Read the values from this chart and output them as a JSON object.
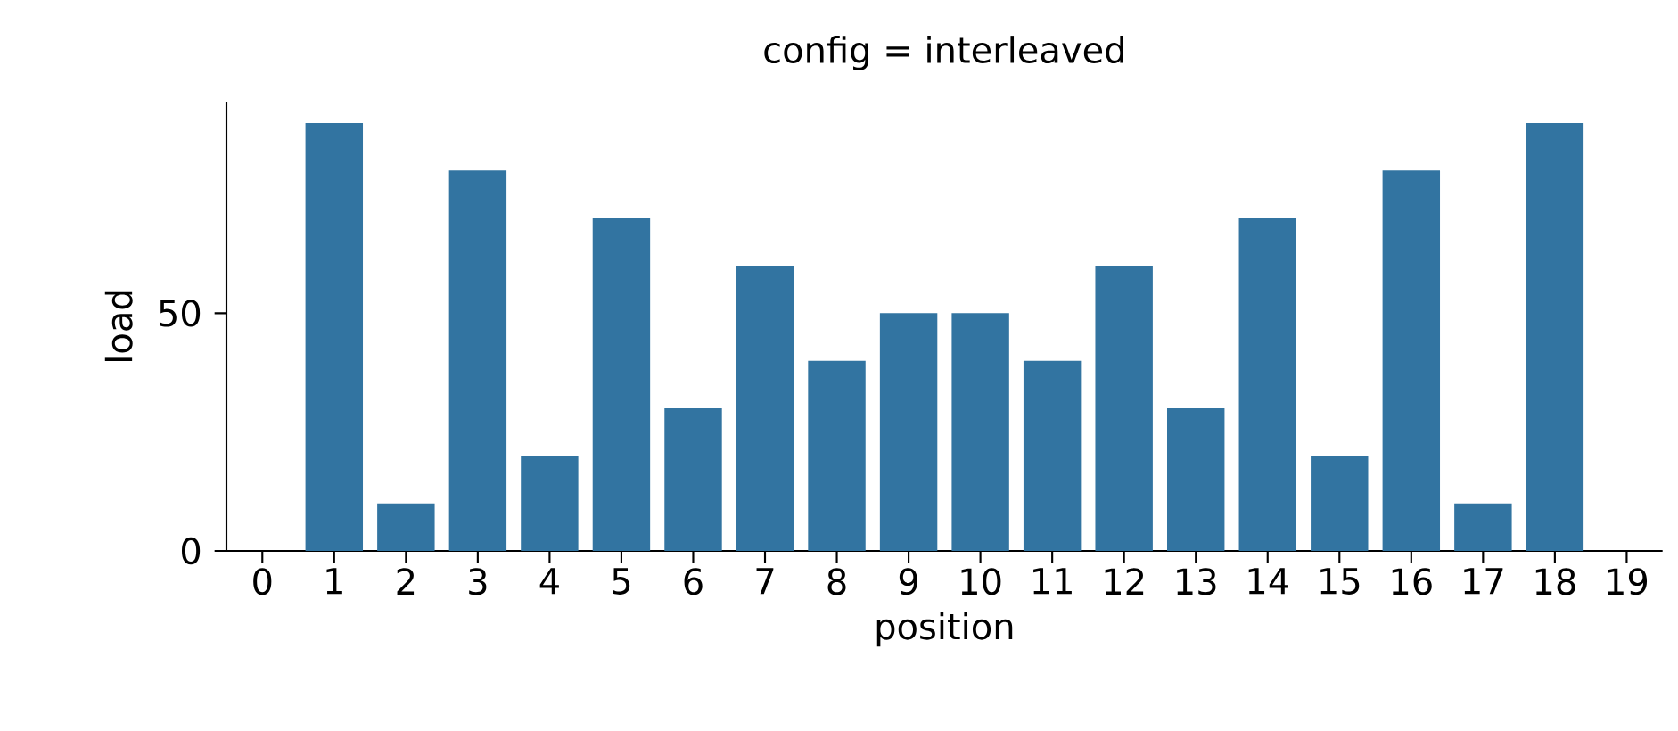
{
  "chart_data": {
    "type": "bar",
    "title": "config =  interleaved",
    "xlabel": "position",
    "ylabel": "load",
    "categories": [
      "0",
      "1",
      "2",
      "3",
      "4",
      "5",
      "6",
      "7",
      "8",
      "9",
      "10",
      "11",
      "12",
      "13",
      "14",
      "15",
      "16",
      "17",
      "18",
      "19"
    ],
    "values": [
      0,
      90,
      10,
      80,
      20,
      70,
      30,
      60,
      40,
      50,
      50,
      40,
      60,
      30,
      70,
      20,
      80,
      10,
      90,
      0
    ],
    "color": "#3274a1",
    "ylim": [
      0,
      94.5
    ],
    "yticks": [
      0,
      50
    ],
    "grid": false
  }
}
